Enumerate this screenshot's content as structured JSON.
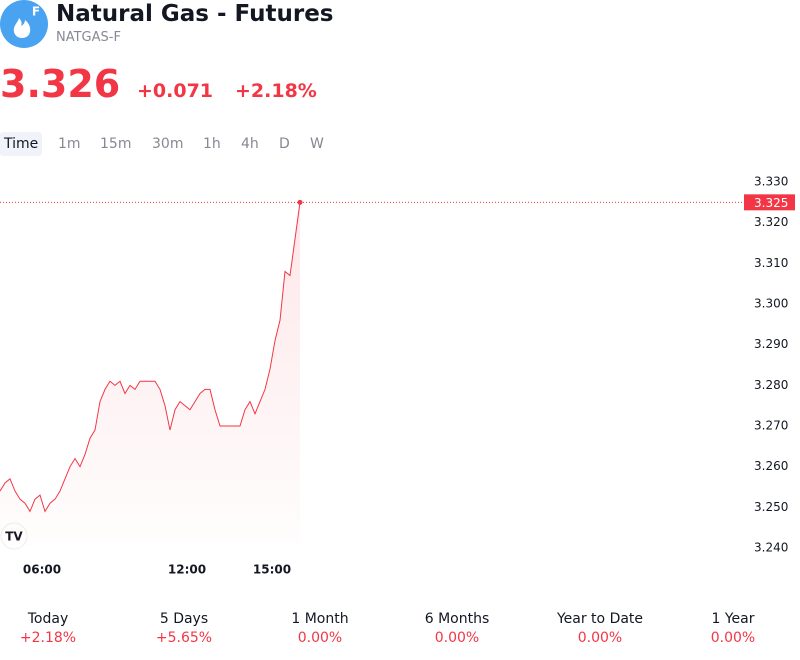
{
  "header": {
    "logo_badge": "F",
    "title": "Natural Gas - Futures",
    "symbol": "NATGAS-F",
    "price": "3.326",
    "change": "+0.071",
    "change_percent": "+2.18%"
  },
  "timeframes": [
    "Time",
    "1m",
    "15m",
    "30m",
    "1h",
    "4h",
    "D",
    "W"
  ],
  "chart_data": {
    "type": "line",
    "color": "#f23645",
    "categories": [
      null,
      null,
      null,
      null,
      null,
      null,
      null,
      null,
      "06:00",
      null,
      null,
      null,
      null,
      null,
      null,
      null,
      null,
      null,
      null,
      null,
      null,
      null,
      null,
      null,
      null,
      null,
      null,
      null,
      null,
      null,
      null,
      null,
      null,
      null,
      null,
      null,
      null,
      "12:00",
      null,
      null,
      null,
      null,
      null,
      null,
      null,
      null,
      null,
      null,
      null,
      null,
      null,
      null,
      null,
      null,
      "15:00",
      null,
      null,
      null,
      null,
      null,
      null
    ],
    "values": [
      3.254,
      3.256,
      3.257,
      3.254,
      3.252,
      3.251,
      3.249,
      3.252,
      3.253,
      3.249,
      3.251,
      3.252,
      3.254,
      3.257,
      3.26,
      3.262,
      3.26,
      3.263,
      3.267,
      3.269,
      3.276,
      3.279,
      3.281,
      3.28,
      3.281,
      3.278,
      3.28,
      3.279,
      3.281,
      3.281,
      3.281,
      3.281,
      3.279,
      3.275,
      3.269,
      3.274,
      3.276,
      3.275,
      3.274,
      3.276,
      3.278,
      3.279,
      3.279,
      3.274,
      3.27,
      3.27,
      3.27,
      3.27,
      3.27,
      3.274,
      3.276,
      3.273,
      3.276,
      3.279,
      3.284,
      3.291,
      3.296,
      3.308,
      3.307,
      3.316,
      3.325
    ],
    "ylim": [
      3.24,
      3.33
    ],
    "yticks": [
      {
        "value": 3.24,
        "label": "3.240"
      },
      {
        "value": 3.25,
        "label": "3.250"
      },
      {
        "value": 3.26,
        "label": "3.260"
      },
      {
        "value": 3.27,
        "label": "3.270"
      },
      {
        "value": 3.28,
        "label": "3.280"
      },
      {
        "value": 3.29,
        "label": "3.290"
      },
      {
        "value": 3.3,
        "label": "3.300"
      },
      {
        "value": 3.31,
        "label": "3.310"
      },
      {
        "value": 3.32,
        "label": "3.320"
      },
      {
        "value": 3.33,
        "label": "3.330"
      }
    ],
    "last_value": {
      "value": 3.325,
      "label": "3.325"
    }
  },
  "periods": [
    {
      "label": "Today",
      "change": "+2.18%"
    },
    {
      "label": "5 Days",
      "change": "+5.65%"
    },
    {
      "label": "1 Month",
      "change": "0.00%"
    },
    {
      "label": "6 Months",
      "change": "0.00%"
    },
    {
      "label": "Year to Date",
      "change": "0.00%"
    },
    {
      "label": "1 Year",
      "change": "0.00%"
    }
  ]
}
